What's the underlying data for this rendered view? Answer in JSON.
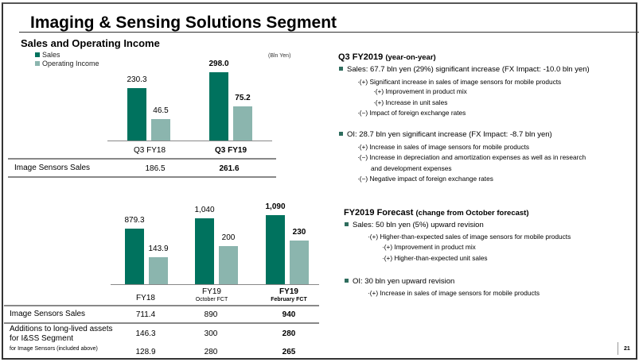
{
  "slide": {
    "title": "Imaging & Sensing Solutions Segment",
    "subtitle": "Sales and Operating Income",
    "page_number": "21"
  },
  "legend": {
    "sales": "Sales",
    "oi": "Operating Income",
    "unit": "(Bln Yen)"
  },
  "colors": {
    "sales": "#00725e",
    "oi": "#8bb5ae"
  },
  "chart_data": [
    {
      "type": "bar",
      "categories": [
        "Q3 FY18",
        "Q3 FY19"
      ],
      "series": [
        {
          "name": "Sales",
          "values": [
            230.3,
            298.0
          ],
          "labels": [
            "230.3",
            "298.0"
          ]
        },
        {
          "name": "Operating Income",
          "values": [
            46.5,
            75.2
          ],
          "labels": [
            "46.5",
            "75.2"
          ]
        }
      ],
      "unit": "(Bln Yen)"
    },
    {
      "type": "bar",
      "categories": [
        "FY18",
        "FY19",
        "FY19"
      ],
      "category_sublabels": [
        "",
        "October FCT",
        "February FCT"
      ],
      "series": [
        {
          "name": "Sales",
          "values": [
            879.3,
            1040,
            1090
          ],
          "labels": [
            "879.3",
            "1,040",
            "1,090"
          ]
        },
        {
          "name": "Operating Income",
          "values": [
            143.9,
            200,
            230
          ],
          "labels": [
            "143.9",
            "200",
            "230"
          ]
        }
      ]
    }
  ],
  "table1": {
    "rows": [
      {
        "label": "Image Sensors Sales",
        "values": [
          "186.5",
          "261.6"
        ]
      }
    ]
  },
  "table2": {
    "rows": [
      {
        "label": "Image Sensors Sales",
        "values": [
          "711.4",
          "890",
          "940"
        ]
      },
      {
        "label": "Additions to long-lived assets",
        "label2": "for I&SS Segment",
        "values": [
          "146.3",
          "300",
          "280"
        ]
      },
      {
        "label": "for Image Sensors (included above)",
        "values": [
          "128.9",
          "280",
          "265"
        ]
      }
    ]
  },
  "right": {
    "q3": {
      "heading": "Q3 FY2019",
      "heading_note": "(year-on-year)",
      "sales": "Sales: 67.7 bln yen (29%) significant increase (FX Impact: -10.0 bln yen)",
      "sales_items": [
        "·(+) Significant increase in sales of image sensors for mobile products",
        "·(+) Improvement in product mix",
        "·(+) Increase in unit sales",
        "·(−) Impact of foreign exchange rates"
      ],
      "oi": "OI: 28.7 bln yen significant increase (FX Impact: -8.7 bln yen)",
      "oi_items": [
        "·(+) Increase in sales of image sensors for mobile products",
        "·(−) Increase in depreciation and amortization expenses as well as in research",
        "and development expenses",
        "·(−) Negative impact of foreign exchange rates"
      ]
    },
    "fct": {
      "heading": "FY2019 Forecast",
      "heading_note": "(change from October forecast)",
      "sales": "Sales: 50 bln yen (5%) upward revision",
      "sales_items": [
        "·(+) Higher-than-expected sales of image sensors for mobile products",
        "·(+) Improvement in product mix",
        "·(+) Higher-than-expected unit sales"
      ],
      "oi": "OI: 30 bln yen upward revision",
      "oi_items": [
        "·(+) Increase in sales of image sensors for mobile products"
      ]
    }
  }
}
